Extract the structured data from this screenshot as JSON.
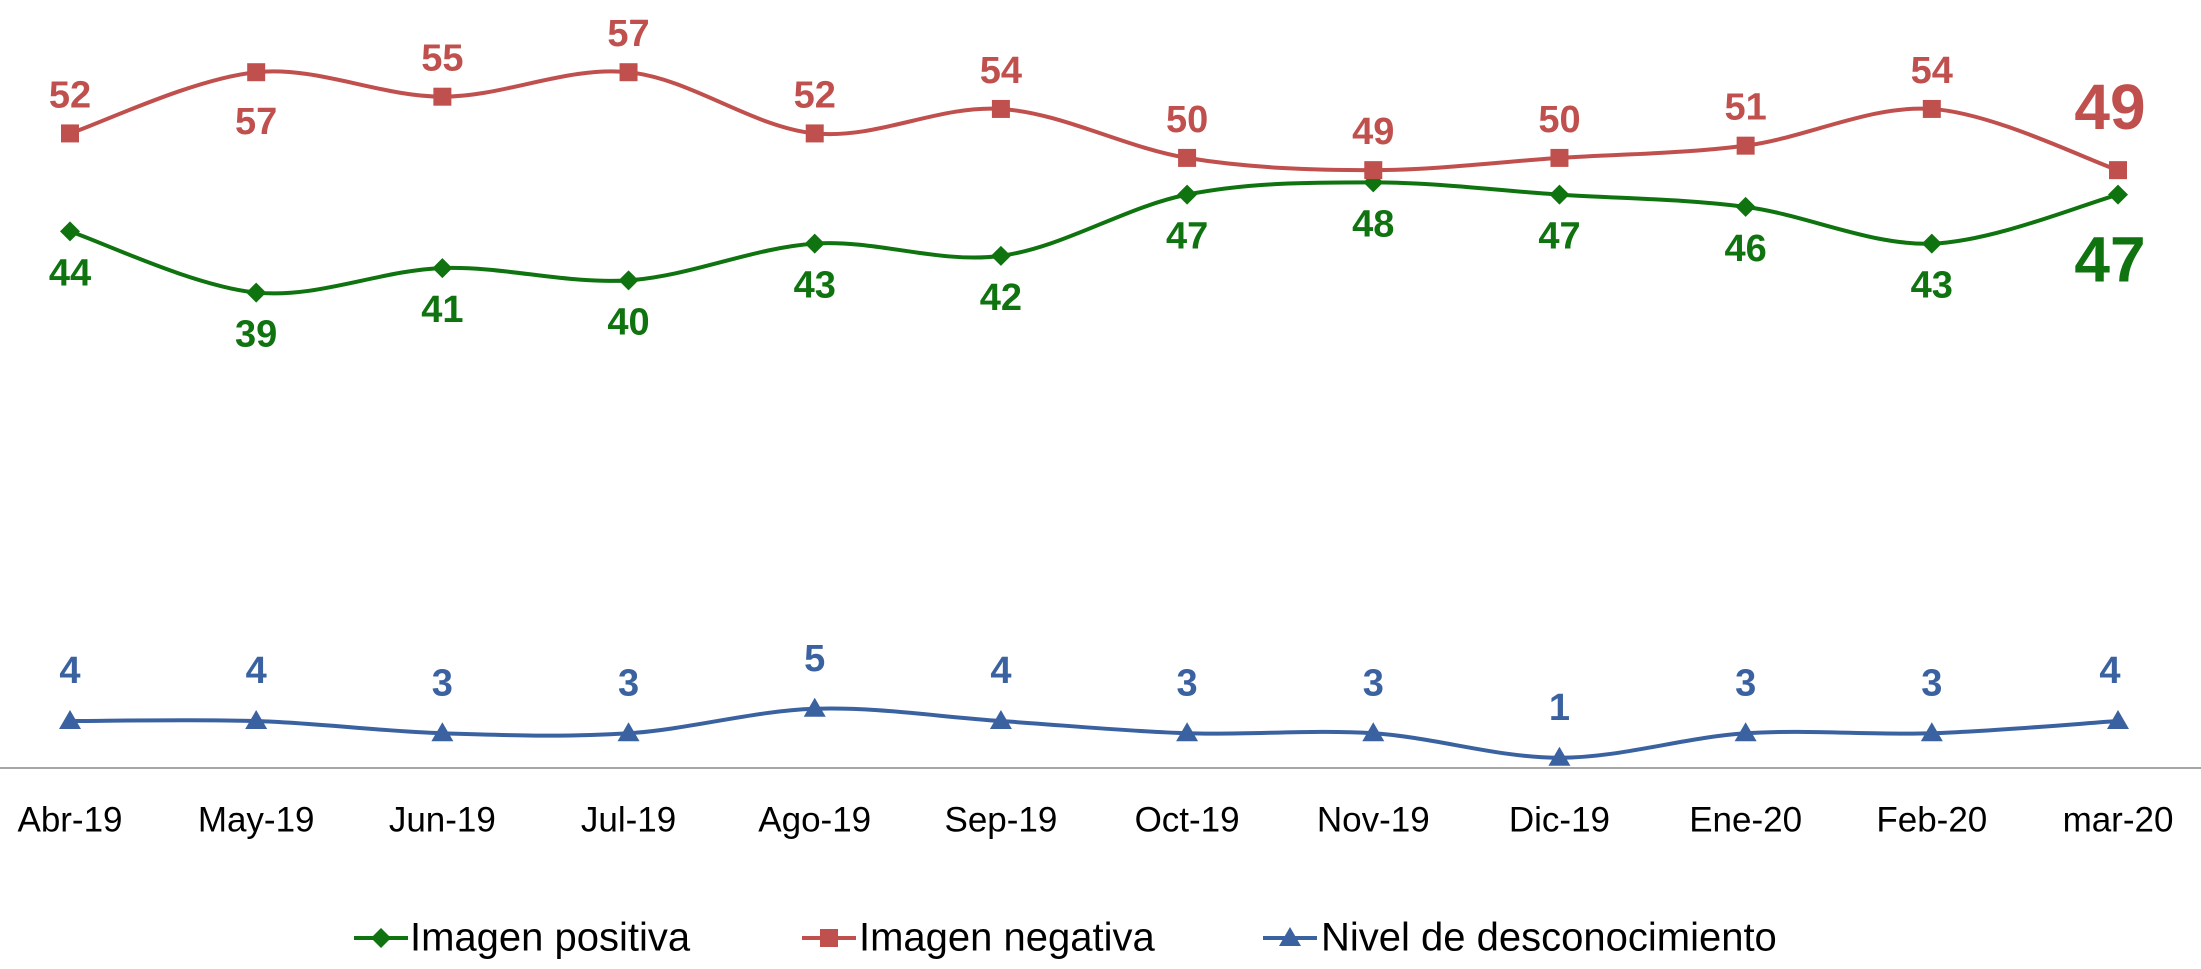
{
  "chart_data": {
    "type": "line",
    "categories": [
      "Abr-19",
      "May-19",
      "Jun-19",
      "Jul-19",
      "Ago-19",
      "Sep-19",
      "Oct-19",
      "Nov-19",
      "Dic-19",
      "Ene-20",
      "Feb-20",
      "mar-20"
    ],
    "series": [
      {
        "name": "Imagen positiva",
        "color": "#0f730f",
        "marker": "diamond",
        "values": [
          44,
          39,
          41,
          40,
          43,
          42,
          47,
          48,
          47,
          46,
          43,
          47
        ]
      },
      {
        "name": "Imagen negativa",
        "color": "#c0504d",
        "marker": "square",
        "values": [
          52,
          57,
          55,
          57,
          52,
          54,
          50,
          49,
          50,
          51,
          54,
          49
        ]
      },
      {
        "name": "Nivel de desconocimiento",
        "color": "#3b62a0",
        "marker": "triangle",
        "values": [
          4,
          4,
          3,
          3,
          5,
          4,
          3,
          3,
          1,
          3,
          3,
          4
        ]
      }
    ],
    "ylim": [
      0,
      62
    ],
    "legend": "bottom"
  }
}
